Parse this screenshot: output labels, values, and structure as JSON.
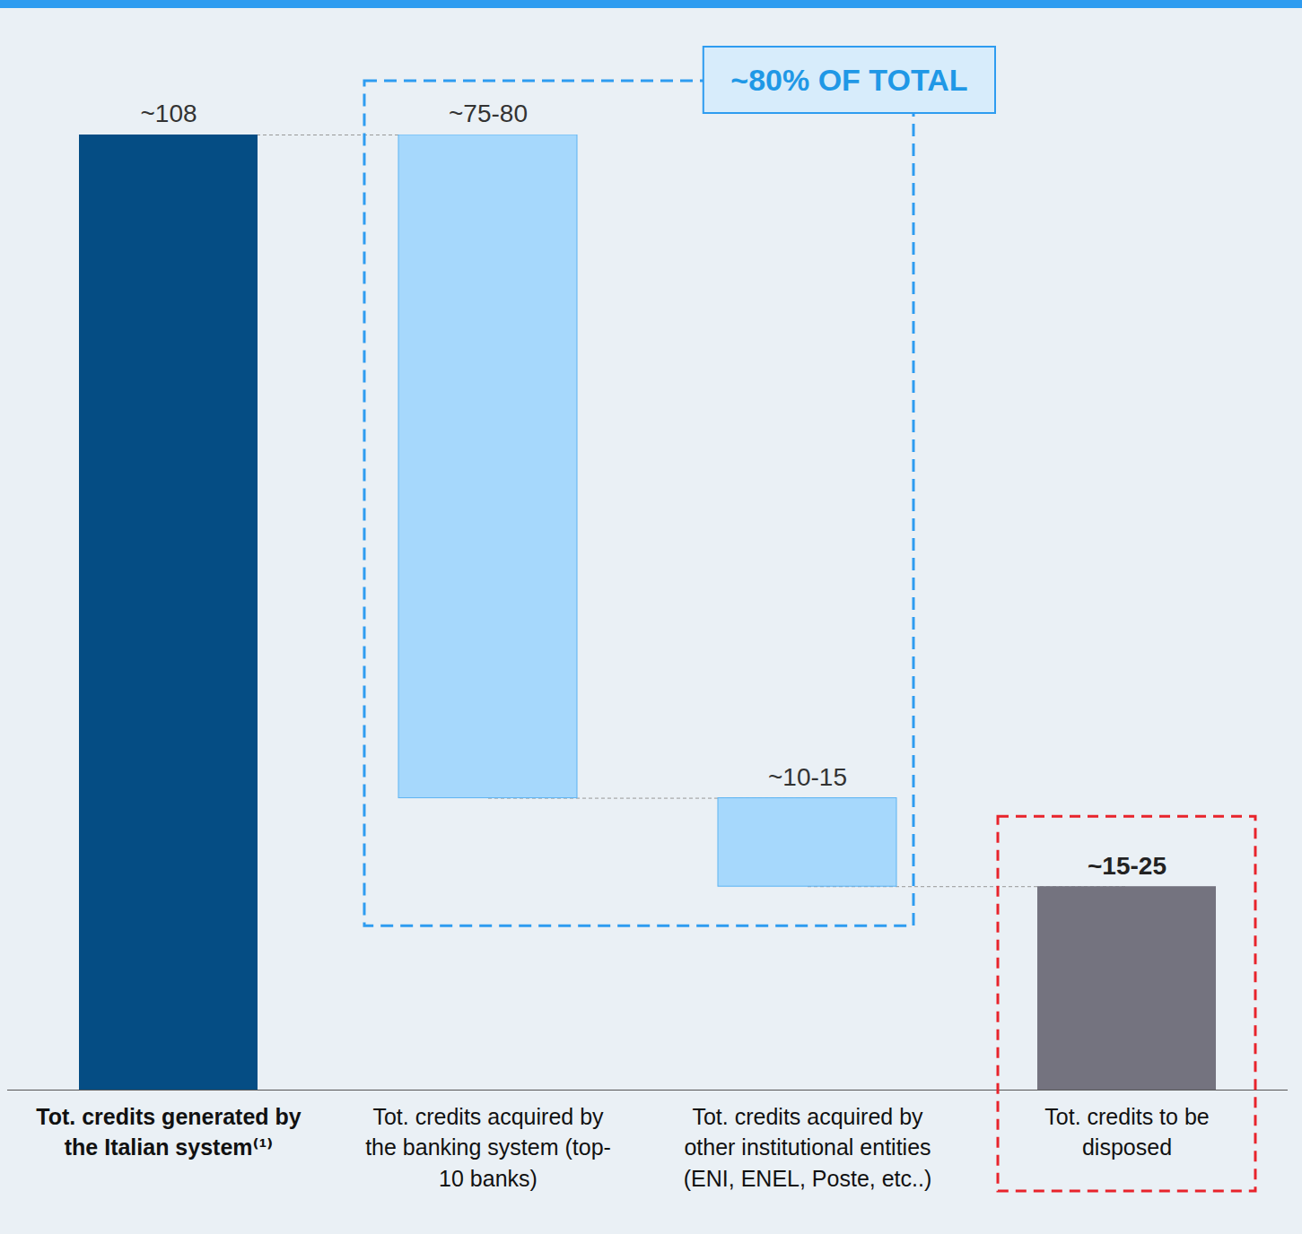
{
  "chart_data": {
    "type": "waterfall",
    "categories": [
      "Tot. credits generated by the Italian system⁽¹⁾",
      "Tot. credits acquired by the banking system (top-10 banks)",
      "Tot. credits acquired by other institutional entities (ENI, ENEL, Poste, etc..)",
      "Tot. credits to be disposed"
    ],
    "values": [
      108,
      75,
      10,
      23
    ],
    "value_labels": [
      "~108",
      "~75-80",
      "~10-15",
      "~15-25"
    ],
    "colors": [
      "#054d84",
      "#a6d8fc",
      "#a6d8fc",
      "#74737f"
    ],
    "data_labels": true,
    "tick_labels": "x",
    "annotations": [
      "~80% OF TOTAL"
    ]
  }
}
